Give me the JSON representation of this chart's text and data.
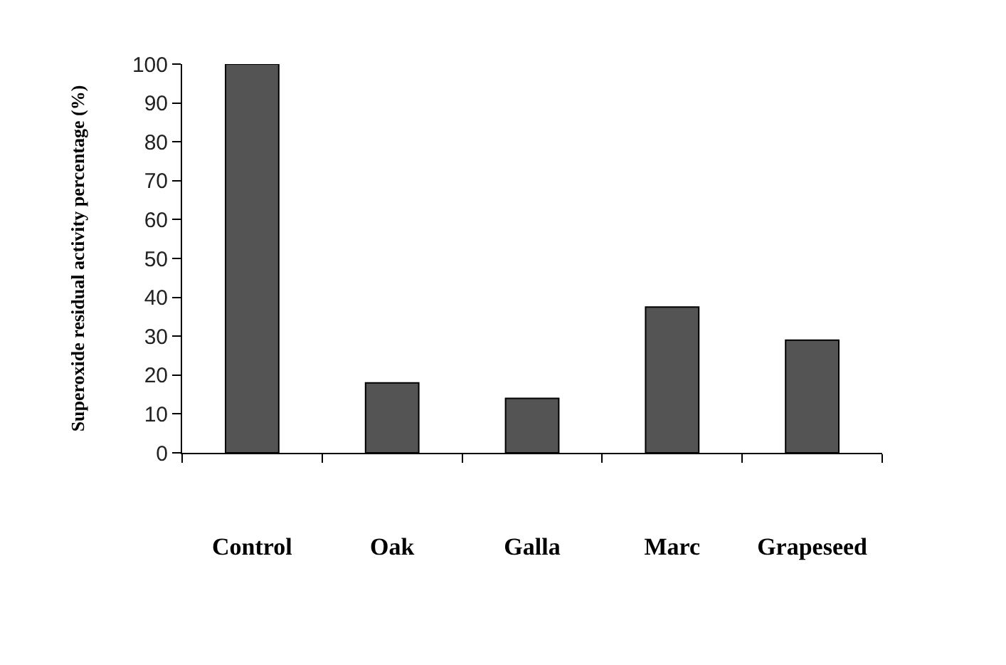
{
  "chart_data": {
    "type": "bar",
    "ylabel": "Superoxide residual activity percentage (%)",
    "categories": [
      "Control",
      "Oak",
      "Galla",
      "Marc",
      "Grapeseed"
    ],
    "values": [
      100,
      18,
      14,
      37.5,
      29
    ],
    "color": "#545454",
    "ylim": [
      0,
      100
    ],
    "yticks": [
      0,
      10,
      20,
      30,
      40,
      50,
      60,
      70,
      80,
      90,
      100
    ]
  }
}
